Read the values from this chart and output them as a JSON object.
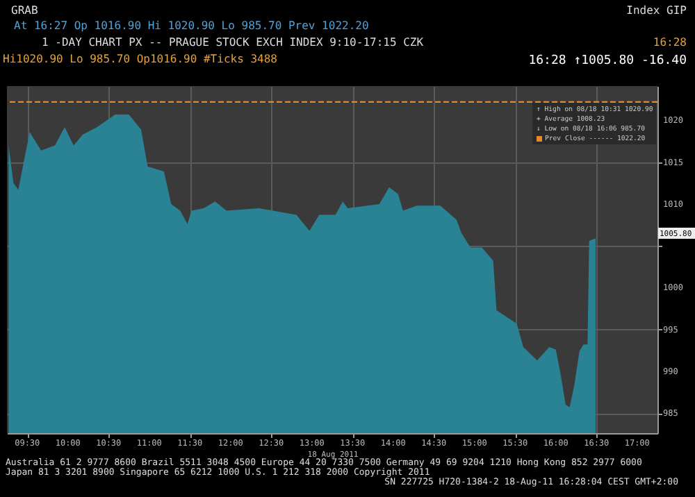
{
  "chart_data": {
    "type": "area",
    "title": "1 -DAY CHART PX -- PRAGUE STOCK EXCH INDEX  9:10-17:15 CZK",
    "xlabel": "18 Aug 2011",
    "x": [
      9.27,
      9.33,
      9.39,
      9.44,
      9.53,
      9.67,
      9.84,
      9.96,
      10.07,
      10.18,
      10.36,
      10.58,
      10.75,
      10.9,
      10.98,
      11.18,
      11.27,
      11.38,
      11.47,
      11.52,
      11.67,
      11.81,
      11.95,
      12.35,
      12.81,
      12.97,
      13.09,
      13.29,
      13.38,
      13.44,
      13.83,
      13.95,
      14.06,
      14.12,
      14.29,
      14.58,
      14.78,
      14.84,
      14.95,
      15.09,
      15.23,
      15.27,
      15.52,
      15.6,
      15.77,
      15.92,
      16.0,
      16.06,
      16.12,
      16.17,
      16.23,
      16.29,
      16.34,
      16.39,
      16.41,
      16.49
    ],
    "series": [
      {
        "color": "#2a8394",
        "values": [
          1017.0,
          1012.5,
          1011.7,
          1014.2,
          1018.6,
          1016.4,
          1017.0,
          1019.2,
          1017.0,
          1018.3,
          1019.2,
          1020.7,
          1020.7,
          1018.9,
          1014.5,
          1013.9,
          1010.0,
          1009.2,
          1007.6,
          1009.2,
          1009.5,
          1010.3,
          1009.2,
          1009.5,
          1008.7,
          1006.8,
          1008.7,
          1008.7,
          1010.3,
          1009.5,
          1010.0,
          1012.0,
          1011.2,
          1009.2,
          1009.8,
          1009.8,
          1008.1,
          1006.5,
          1004.8,
          1004.8,
          1003.2,
          997.3,
          995.7,
          992.9,
          991.3,
          992.9,
          992.6,
          989.6,
          986.0,
          985.7,
          988.5,
          992.4,
          993.2,
          993.2,
          1005.6,
          1005.9
        ]
      }
    ],
    "xlim": [
      9.25,
      17.25
    ],
    "xticks": [
      {
        "value": 9.5,
        "label": "09:30"
      },
      {
        "value": 10,
        "label": "10:00"
      },
      {
        "value": 10.5,
        "label": "10:30"
      },
      {
        "value": 11,
        "label": "11:00"
      },
      {
        "value": 11.5,
        "label": "11:30"
      },
      {
        "value": 12,
        "label": "12:00"
      },
      {
        "value": 12.5,
        "label": "12:30"
      },
      {
        "value": 13,
        "label": "13:00"
      },
      {
        "value": 13.5,
        "label": "13:30"
      },
      {
        "value": 14,
        "label": "14:00"
      },
      {
        "value": 14.5,
        "label": "14:30"
      },
      {
        "value": 15,
        "label": "15:00"
      },
      {
        "value": 15.5,
        "label": "15:30"
      },
      {
        "value": 16,
        "label": "16:00"
      },
      {
        "value": 16.5,
        "label": "16:30"
      },
      {
        "value": 17,
        "label": "17:00"
      }
    ],
    "ylim": [
      982.6,
      1024.1
    ],
    "yticks": [
      985,
      990,
      995,
      1000,
      {
        "value": 1005,
        "label": null
      },
      1010,
      1015,
      1020
    ],
    "grid": true,
    "ref_lines": [
      {
        "axis": "y",
        "value": 1022.2,
        "label": "Prev Close ------ 1022.20",
        "color": "#e8862a",
        "line_style": "dashed"
      }
    ],
    "annotations": [
      "GRAB",
      "Index GIP",
      "At 16:27 Op 1016.90   Hi 1020.90   Lo 985.70   Prev 1022.20",
      "16:28",
      "Hi1020.90 Lo 985.70 Op1016.90 #Ticks 3488",
      "16:28 ↑1005.80  -16.40",
      "↑ High on 08/18 10:31  1020.90",
      "+ Average              1008.23",
      "↓ Low on 08/18 16:06    985.70",
      "1005.80",
      "Australia 61 2 9777 8600 Brazil 5511 3048 4500 Europe 44 20 7330 7500 Germany 49 69 9204 1210 Hong Kong 852 2977 6000",
      "Japan 81 3 3201 8900      Singapore 65 6212 1000      U.S. 1 212 318 2000        Copyright 2011",
      "SN 227725 H720-1384-2 18-Aug-11 16:28:04 CEST GMT+2:00"
    ]
  }
}
